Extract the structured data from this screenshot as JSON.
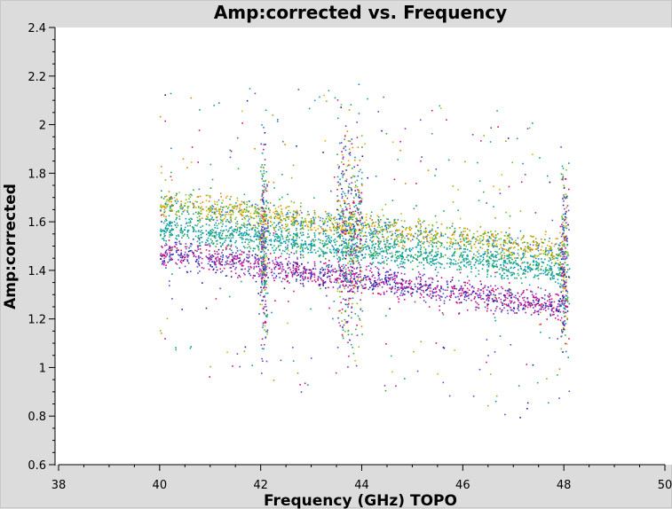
{
  "chart_data": {
    "type": "scatter",
    "title": "Amp:corrected vs. Frequency",
    "xlabel": "Frequency (GHz) TOPO",
    "ylabel": "Amp:corrected",
    "xlim": [
      38,
      50
    ],
    "ylim": [
      0.6,
      2.4
    ],
    "x_ticks": [
      38,
      40,
      42,
      44,
      46,
      48,
      50
    ],
    "x_tick_labels": [
      "38",
      "40",
      "42",
      "44",
      "46",
      "48",
      "50"
    ],
    "y_ticks": [
      0.6,
      0.8,
      1.0,
      1.2,
      1.4,
      1.6,
      1.8,
      2.0,
      2.2,
      2.4
    ],
    "y_tick_labels": [
      "0.6",
      "0.8",
      "1",
      "1.2",
      "1.4",
      "1.6",
      "1.8",
      "2",
      "2.2",
      "2.4"
    ],
    "grid": false,
    "legend": "none",
    "point_colors": [
      "#00a0a8",
      "#1ea0a0",
      "#2c7fd0",
      "#e0007a",
      "#c8188c",
      "#7a3ccc",
      "#4a4acc",
      "#d88a00",
      "#e8b000",
      "#7cc020",
      "#2eaa44",
      "#1c1c9c"
    ],
    "series": [
      {
        "band": "upper",
        "color_group": "orange-green",
        "x_range": [
          40,
          48
        ],
        "y_start": 1.68,
        "y_end": 1.48,
        "spread": 0.05
      },
      {
        "band": "middle",
        "color_group": "teal",
        "x_range": [
          40,
          48
        ],
        "y_start": 1.58,
        "y_end": 1.4,
        "spread": 0.05
      },
      {
        "band": "lower",
        "color_group": "magenta-purple",
        "x_range": [
          40,
          48
        ],
        "y_start": 1.48,
        "y_end": 1.25,
        "spread": 0.05
      }
    ],
    "features": [
      {
        "x": 42.05,
        "y_range": [
          1.05,
          1.95
        ],
        "note": "spread spike"
      },
      {
        "x_range": [
          43.5,
          44.0
        ],
        "y_range": [
          1.05,
          2.05
        ],
        "note": "scatter region"
      },
      {
        "x": 48.0,
        "y_range": [
          1.05,
          1.85
        ],
        "note": "edge spike"
      }
    ]
  }
}
